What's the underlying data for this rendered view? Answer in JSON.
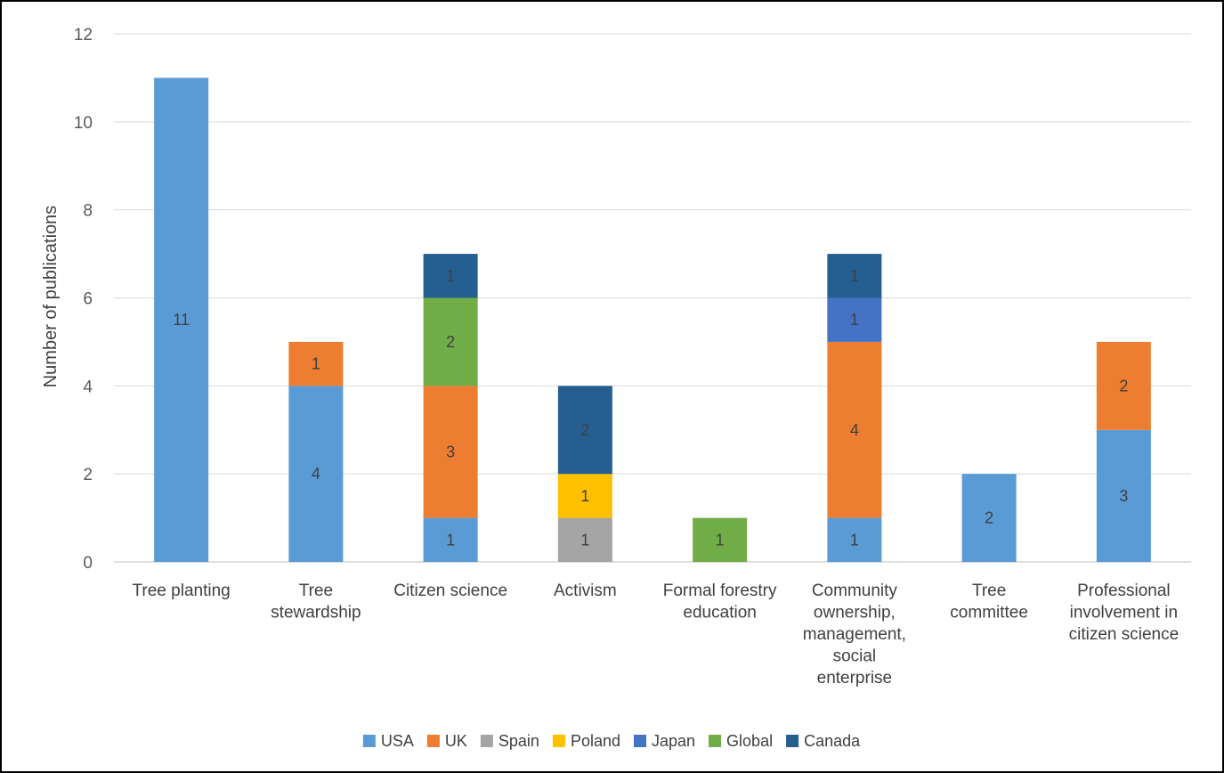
{
  "chart_data": {
    "type": "bar",
    "stacked": true,
    "title": "",
    "xlabel": "",
    "ylabel": "Number of publications",
    "ylim": [
      0,
      12
    ],
    "y_ticks": [
      "0",
      "2",
      "4",
      "6",
      "8",
      "10",
      "12"
    ],
    "grid": true,
    "legend_position": "bottom",
    "categories": [
      [
        "Tree planting"
      ],
      [
        "Tree",
        "stewardship"
      ],
      [
        "Citizen science"
      ],
      [
        "Activism"
      ],
      [
        "Formal forestry",
        "education"
      ],
      [
        "Community",
        "ownership,",
        "management,",
        "social",
        "enterprise"
      ],
      [
        "Tree",
        "committee"
      ],
      [
        "Professional",
        "involvement in",
        "citizen science"
      ]
    ],
    "series": [
      {
        "name": "USA",
        "color": "#5b9bd5",
        "values": [
          11,
          4,
          1,
          0,
          0,
          1,
          2,
          3
        ]
      },
      {
        "name": "UK",
        "color": "#ed7d31",
        "values": [
          0,
          1,
          3,
          0,
          0,
          4,
          0,
          2
        ]
      },
      {
        "name": "Spain",
        "color": "#a5a5a5",
        "values": [
          0,
          0,
          0,
          1,
          0,
          0,
          0,
          0
        ]
      },
      {
        "name": "Poland",
        "color": "#ffc000",
        "values": [
          0,
          0,
          0,
          1,
          0,
          0,
          0,
          0
        ]
      },
      {
        "name": "Japan",
        "color": "#4472c4",
        "values": [
          0,
          0,
          0,
          0,
          0,
          1,
          0,
          0
        ]
      },
      {
        "name": "Global",
        "color": "#70ad47",
        "values": [
          0,
          0,
          2,
          0,
          1,
          0,
          0,
          0
        ]
      },
      {
        "name": "Canada",
        "color": "#255e91",
        "values": [
          0,
          0,
          1,
          2,
          0,
          1,
          0,
          0
        ]
      }
    ]
  }
}
